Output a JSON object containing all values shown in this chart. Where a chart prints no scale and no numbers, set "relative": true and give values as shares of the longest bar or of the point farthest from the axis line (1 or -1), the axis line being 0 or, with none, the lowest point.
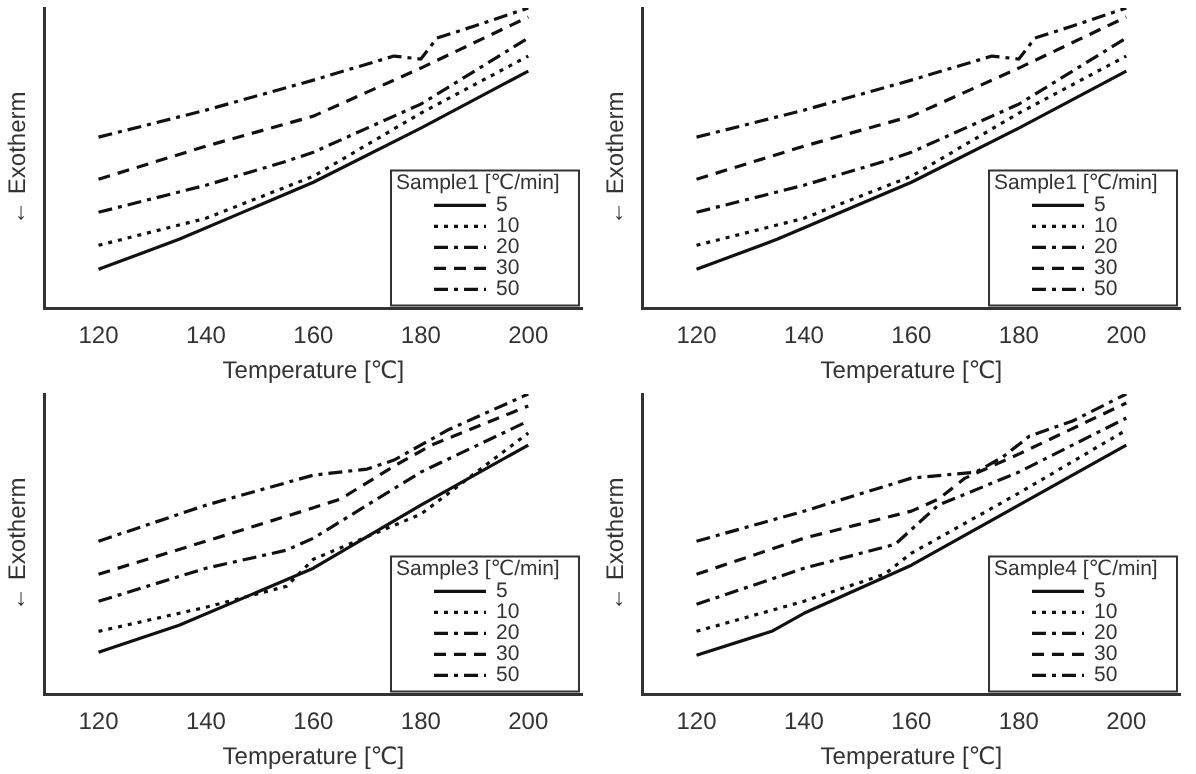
{
  "chart_data": [
    {
      "type": "line",
      "xlabel": "Temperature [℃]",
      "ylabel": "← Exotherm",
      "legend_title": "Sample1 [℃/min]",
      "legend": "bottom right",
      "relative": true,
      "xlim": [
        110,
        210
      ],
      "xticks": [
        120,
        140,
        160,
        180,
        200
      ],
      "series": [
        {
          "name": "5",
          "color": "#111111",
          "line_style": "solid",
          "x": [
            120,
            135,
            160,
            180,
            200
          ],
          "values": [
            0.13,
            0.23,
            0.42,
            0.6,
            0.79
          ]
        },
        {
          "name": "10",
          "color": "#111111",
          "line_style": "dotted",
          "x": [
            120,
            140,
            160,
            180,
            200
          ],
          "values": [
            0.21,
            0.3,
            0.44,
            0.65,
            0.84
          ]
        },
        {
          "name": "20",
          "color": "#111111",
          "line_style": "dashdot",
          "x": [
            120,
            140,
            155,
            160,
            180,
            200
          ],
          "values": [
            0.32,
            0.41,
            0.49,
            0.52,
            0.68,
            0.9
          ]
        },
        {
          "name": "30",
          "color": "#111111",
          "line_style": "dashed",
          "x": [
            120,
            140,
            160,
            170,
            180,
            200
          ],
          "values": [
            0.43,
            0.54,
            0.64,
            0.72,
            0.8,
            0.97
          ]
        },
        {
          "name": "50",
          "color": "#111111",
          "line_style": "dashdot",
          "x": [
            120,
            140,
            160,
            175,
            180,
            183,
            190,
            200
          ],
          "values": [
            0.57,
            0.66,
            0.76,
            0.84,
            0.83,
            0.9,
            0.94,
            1
          ]
        }
      ]
    },
    {
      "type": "line",
      "xlabel": "Temperature [℃]",
      "ylabel": "← Exotherm",
      "legend_title": "Sample1 [℃/min]",
      "legend": "bottom right",
      "relative": true,
      "xlim": [
        110,
        210
      ],
      "xticks": [
        120,
        140,
        160,
        180,
        200
      ],
      "series": [
        {
          "name": "5",
          "color": "#111111",
          "line_style": "solid",
          "x": [
            120,
            135,
            160,
            180,
            200
          ],
          "values": [
            0.13,
            0.23,
            0.42,
            0.6,
            0.79
          ]
        },
        {
          "name": "10",
          "color": "#111111",
          "line_style": "dotted",
          "x": [
            120,
            140,
            160,
            180,
            200
          ],
          "values": [
            0.21,
            0.3,
            0.44,
            0.65,
            0.84
          ]
        },
        {
          "name": "20",
          "color": "#111111",
          "line_style": "dashdot",
          "x": [
            120,
            140,
            155,
            160,
            180,
            200
          ],
          "values": [
            0.32,
            0.41,
            0.49,
            0.52,
            0.68,
            0.9
          ]
        },
        {
          "name": "30",
          "color": "#111111",
          "line_style": "dashed",
          "x": [
            120,
            140,
            160,
            170,
            180,
            200
          ],
          "values": [
            0.43,
            0.54,
            0.64,
            0.72,
            0.8,
            0.97
          ]
        },
        {
          "name": "50",
          "color": "#111111",
          "line_style": "dashdot",
          "x": [
            120,
            140,
            160,
            175,
            180,
            183,
            190,
            200
          ],
          "values": [
            0.57,
            0.66,
            0.76,
            0.84,
            0.83,
            0.9,
            0.94,
            1
          ]
        }
      ]
    },
    {
      "type": "line",
      "xlabel": "Temperature [℃]",
      "ylabel": "← Exotherm",
      "legend_title": "Sample3 [℃/min]",
      "legend": "bottom right",
      "relative": true,
      "xlim": [
        110,
        210
      ],
      "xticks": [
        120,
        140,
        160,
        180,
        200
      ],
      "series": [
        {
          "name": "5",
          "color": "#111111",
          "line_style": "solid",
          "x": [
            120,
            135,
            160,
            180,
            200
          ],
          "values": [
            0.14,
            0.23,
            0.42,
            0.63,
            0.83
          ]
        },
        {
          "name": "10",
          "color": "#111111",
          "line_style": "dotted",
          "x": [
            120,
            140,
            155,
            160,
            180,
            200
          ],
          "values": [
            0.21,
            0.29,
            0.36,
            0.45,
            0.6,
            0.87
          ]
        },
        {
          "name": "20",
          "color": "#111111",
          "line_style": "dashdot",
          "x": [
            120,
            140,
            155,
            160,
            180,
            200
          ],
          "values": [
            0.31,
            0.42,
            0.48,
            0.52,
            0.74,
            0.91
          ]
        },
        {
          "name": "30",
          "color": "#111111",
          "line_style": "dashed",
          "x": [
            120,
            140,
            158,
            165,
            175,
            182,
            200
          ],
          "values": [
            0.4,
            0.51,
            0.61,
            0.65,
            0.76,
            0.83,
            0.96
          ]
        },
        {
          "name": "50",
          "color": "#111111",
          "line_style": "dashdot",
          "x": [
            120,
            140,
            160,
            170,
            175,
            182,
            185,
            190,
            200
          ],
          "values": [
            0.51,
            0.63,
            0.73,
            0.75,
            0.78,
            0.85,
            0.88,
            0.92,
            1
          ]
        }
      ]
    },
    {
      "type": "line",
      "xlabel": "Temperature [℃]",
      "ylabel": "← Exotherm",
      "legend_title": "Sample4 [℃/min]",
      "legend": "bottom right",
      "relative": true,
      "xlim": [
        110,
        210
      ],
      "xticks": [
        120,
        140,
        160,
        180,
        200
      ],
      "series": [
        {
          "name": "5",
          "color": "#111111",
          "line_style": "solid",
          "x": [
            120,
            134,
            140,
            160,
            180,
            200
          ],
          "values": [
            0.13,
            0.21,
            0.27,
            0.43,
            0.63,
            0.83
          ]
        },
        {
          "name": "10",
          "color": "#111111",
          "line_style": "dotted",
          "x": [
            120,
            140,
            155,
            160,
            180,
            200
          ],
          "values": [
            0.21,
            0.31,
            0.4,
            0.47,
            0.67,
            0.88
          ]
        },
        {
          "name": "20",
          "color": "#111111",
          "line_style": "dashdot",
          "x": [
            120,
            140,
            157,
            165,
            180,
            200
          ],
          "values": [
            0.3,
            0.42,
            0.5,
            0.63,
            0.74,
            0.92
          ]
        },
        {
          "name": "30",
          "color": "#111111",
          "line_style": "dashed",
          "x": [
            120,
            140,
            160,
            165,
            170,
            180,
            200
          ],
          "values": [
            0.4,
            0.52,
            0.61,
            0.65,
            0.72,
            0.8,
            0.97
          ]
        },
        {
          "name": "50",
          "color": "#111111",
          "line_style": "dashdot",
          "x": [
            120,
            140,
            160,
            172,
            177,
            182,
            190,
            200
          ],
          "values": [
            0.51,
            0.61,
            0.72,
            0.74,
            0.79,
            0.86,
            0.91,
            1
          ]
        }
      ]
    }
  ]
}
